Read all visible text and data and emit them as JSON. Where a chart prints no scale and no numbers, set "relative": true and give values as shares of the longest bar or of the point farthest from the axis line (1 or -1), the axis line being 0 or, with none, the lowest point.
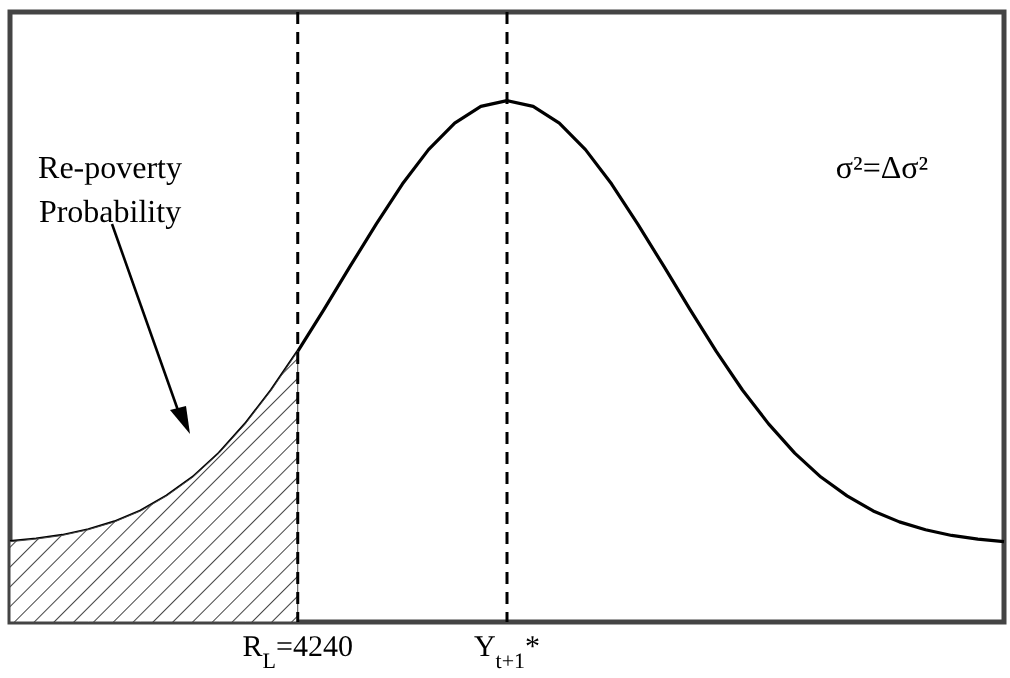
{
  "chart_data": {
    "type": "line",
    "relative": true,
    "tick_labels": "x",
    "categories": [
      null,
      null,
      null,
      null,
      null,
      null,
      null,
      null,
      null,
      null,
      null,
      "R$_{L}$=4240",
      null,
      null,
      null,
      null,
      null,
      null,
      null,
      "Y$_{t+1}$*",
      null,
      null,
      null,
      null,
      null,
      null,
      null,
      null,
      null,
      null,
      null,
      null,
      null,
      null,
      null,
      null,
      null,
      null,
      null
    ],
    "series": [
      {
        "type": "line",
        "color": "#000000",
        "values": [
          0.154,
          0.159,
          0.166,
          0.177,
          0.192,
          0.213,
          0.242,
          0.278,
          0.324,
          0.38,
          0.445,
          0.519,
          0.599,
          0.682,
          0.763,
          0.84,
          0.906,
          0.957,
          0.989,
          1,
          0.989,
          0.957,
          0.906,
          0.84,
          0.763,
          0.682,
          0.599,
          0.519,
          0.445,
          0.38,
          0.324,
          0.278,
          0.242,
          0.213,
          0.192,
          0.177,
          0.166,
          0.159,
          0.154
        ]
      },
      {
        "type": "area",
        "color": "#444444",
        "values": [
          0.154,
          0.159,
          0.166,
          0.177,
          0.192,
          0.213,
          0.242,
          0.278,
          0.324,
          0.38,
          0.445,
          0.519,
          null,
          null,
          null,
          null,
          null,
          null,
          null,
          null,
          null,
          null,
          null,
          null,
          null,
          null,
          null,
          null,
          null,
          null,
          null,
          null,
          null,
          null,
          null,
          null,
          null,
          null,
          null
        ]
      }
    ],
    "ref_lines": [
      {
        "axis": "x",
        "value": "R$_{L}$=4240",
        "line_style": "dashed",
        "color": "#000000"
      },
      {
        "axis": "x",
        "value": "Y$_{t+1}$*",
        "line_style": "dashed",
        "color": "#000000"
      }
    ],
    "annotations": [
      "Re-poverty Probability",
      "σ²=Δσ²"
    ]
  }
}
